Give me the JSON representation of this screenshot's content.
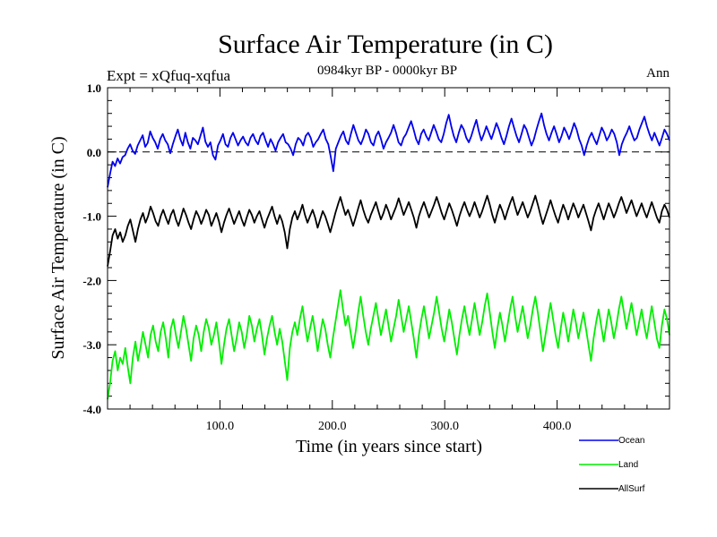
{
  "chart_data": {
    "type": "line",
    "title": "Surface Air Temperature (in C)",
    "subtitle_left": "Expt = xQfuq-xqfua",
    "subtitle_center": "0984kyr BP - 0000kyr BP",
    "subtitle_right": "Ann",
    "xlabel": "Time (in years since start)",
    "ylabel": "Surface Air Temperature (in C)",
    "xlim": [
      0,
      500
    ],
    "ylim": [
      -4.0,
      1.0
    ],
    "xticks": [
      100,
      200,
      300,
      400
    ],
    "xtick_labels": [
      "100.0",
      "200.0",
      "300.0",
      "400.0"
    ],
    "yticks": [
      1.0,
      0.0,
      -1.0,
      -2.0,
      -3.0,
      -4.0
    ],
    "ytick_labels": [
      "1.0",
      "0.0",
      "-1.0",
      "-2.0",
      "-3.0",
      "-4.0"
    ],
    "reference_line": 0.0,
    "series": [
      {
        "name": "Ocean",
        "color": "#0000ee",
        "values": [
          -0.55,
          -0.34,
          -0.15,
          -0.22,
          -0.1,
          -0.18,
          -0.08,
          -0.05,
          0.05,
          0.12,
          0.02,
          -0.03,
          0.1,
          0.18,
          0.26,
          0.08,
          0.14,
          0.32,
          0.22,
          0.15,
          0.05,
          0.2,
          0.28,
          0.18,
          0.12,
          -0.02,
          0.12,
          0.24,
          0.35,
          0.2,
          0.1,
          0.3,
          0.15,
          0.05,
          0.22,
          0.18,
          0.12,
          0.25,
          0.38,
          0.16,
          0.08,
          0.15,
          -0.05,
          -0.12,
          0.1,
          0.18,
          0.28,
          0.12,
          0.08,
          0.22,
          0.3,
          0.2,
          0.1,
          0.18,
          0.24,
          0.15,
          0.1,
          0.22,
          0.28,
          0.18,
          0.12,
          0.25,
          0.3,
          0.18,
          0.08,
          0.2,
          0.12,
          0.02,
          0.15,
          0.22,
          0.28,
          0.15,
          0.12,
          0.05,
          -0.05,
          0.12,
          0.22,
          0.18,
          0.1,
          0.25,
          0.3,
          0.22,
          0.08,
          0.15,
          0.2,
          0.28,
          0.35,
          0.2,
          0.12,
          -0.08,
          -0.3,
          0.05,
          0.15,
          0.25,
          0.32,
          0.18,
          0.12,
          0.28,
          0.42,
          0.3,
          0.18,
          0.12,
          0.22,
          0.35,
          0.28,
          0.15,
          0.1,
          0.25,
          0.32,
          0.2,
          0.05,
          0.15,
          0.22,
          0.3,
          0.42,
          0.3,
          0.15,
          0.1,
          0.22,
          0.28,
          0.38,
          0.48,
          0.35,
          0.2,
          0.12,
          0.28,
          0.35,
          0.25,
          0.18,
          0.3,
          0.42,
          0.32,
          0.2,
          0.15,
          0.28,
          0.45,
          0.58,
          0.4,
          0.25,
          0.15,
          0.3,
          0.42,
          0.35,
          0.22,
          0.15,
          0.25,
          0.38,
          0.5,
          0.32,
          0.18,
          0.28,
          0.4,
          0.3,
          0.2,
          0.32,
          0.45,
          0.35,
          0.22,
          0.12,
          0.25,
          0.4,
          0.52,
          0.38,
          0.25,
          0.15,
          0.28,
          0.42,
          0.35,
          0.22,
          0.1,
          0.2,
          0.35,
          0.48,
          0.6,
          0.42,
          0.28,
          0.18,
          0.3,
          0.4,
          0.28,
          0.15,
          0.25,
          0.38,
          0.3,
          0.2,
          0.32,
          0.45,
          0.35,
          0.2,
          0.1,
          -0.05,
          0.1,
          0.22,
          0.3,
          0.2,
          0.12,
          0.25,
          0.38,
          0.3,
          0.18,
          0.25,
          0.35,
          0.28,
          0.15,
          -0.05,
          0.12,
          0.22,
          0.3,
          0.4,
          0.28,
          0.18,
          0.22,
          0.35,
          0.45,
          0.55,
          0.4,
          0.28,
          0.18,
          0.3,
          0.2,
          0.1,
          0.22,
          0.35,
          0.28,
          0.18
        ]
      },
      {
        "name": "Land",
        "color": "#00ee00",
        "values": [
          -3.85,
          -3.6,
          -3.25,
          -3.1,
          -3.4,
          -3.2,
          -3.3,
          -3.05,
          -3.35,
          -3.6,
          -3.2,
          -2.95,
          -3.25,
          -3.05,
          -2.8,
          -3.0,
          -3.2,
          -2.85,
          -2.7,
          -2.95,
          -3.1,
          -2.8,
          -2.65,
          -2.9,
          -3.2,
          -2.75,
          -2.6,
          -2.85,
          -3.05,
          -2.8,
          -2.55,
          -2.75,
          -3.0,
          -3.25,
          -2.9,
          -2.7,
          -2.85,
          -3.1,
          -2.8,
          -2.6,
          -2.75,
          -3.0,
          -2.85,
          -2.65,
          -2.95,
          -3.3,
          -3.0,
          -2.75,
          -2.6,
          -2.85,
          -3.1,
          -2.9,
          -2.65,
          -2.8,
          -3.05,
          -2.85,
          -2.55,
          -2.7,
          -2.95,
          -2.75,
          -2.6,
          -2.85,
          -3.15,
          -2.9,
          -2.7,
          -2.55,
          -2.8,
          -3.0,
          -2.75,
          -2.95,
          -3.25,
          -3.55,
          -3.05,
          -2.8,
          -2.65,
          -2.85,
          -2.6,
          -2.4,
          -2.7,
          -2.95,
          -2.75,
          -2.55,
          -2.8,
          -3.1,
          -2.85,
          -2.6,
          -2.75,
          -3.0,
          -3.2,
          -2.9,
          -2.65,
          -2.4,
          -2.15,
          -2.45,
          -2.7,
          -2.55,
          -2.8,
          -3.05,
          -2.8,
          -2.5,
          -2.25,
          -2.55,
          -2.8,
          -3.0,
          -2.75,
          -2.55,
          -2.35,
          -2.6,
          -2.85,
          -2.65,
          -2.45,
          -2.7,
          -2.95,
          -2.75,
          -2.55,
          -2.3,
          -2.55,
          -2.8,
          -2.6,
          -2.4,
          -2.65,
          -2.9,
          -3.2,
          -2.85,
          -2.6,
          -2.4,
          -2.65,
          -2.9,
          -2.7,
          -2.5,
          -2.25,
          -2.5,
          -2.75,
          -2.95,
          -2.7,
          -2.45,
          -2.65,
          -2.9,
          -3.15,
          -2.85,
          -2.6,
          -2.4,
          -2.65,
          -2.85,
          -2.6,
          -2.35,
          -2.6,
          -2.85,
          -2.65,
          -2.4,
          -2.2,
          -2.5,
          -2.8,
          -3.05,
          -2.75,
          -2.5,
          -2.7,
          -2.95,
          -2.7,
          -2.45,
          -2.25,
          -2.55,
          -2.8,
          -2.6,
          -2.4,
          -2.65,
          -2.9,
          -2.7,
          -2.45,
          -2.25,
          -2.5,
          -2.8,
          -3.1,
          -2.85,
          -2.6,
          -2.35,
          -2.6,
          -2.85,
          -3.05,
          -2.75,
          -2.5,
          -2.7,
          -2.95,
          -2.7,
          -2.45,
          -2.65,
          -2.9,
          -2.7,
          -2.5,
          -2.75,
          -3.0,
          -3.25,
          -2.9,
          -2.65,
          -2.45,
          -2.7,
          -2.95,
          -2.7,
          -2.45,
          -2.65,
          -2.9,
          -2.7,
          -2.45,
          -2.25,
          -2.5,
          -2.75,
          -2.55,
          -2.35,
          -2.6,
          -2.85,
          -2.65,
          -2.45,
          -2.7,
          -2.9,
          -2.65,
          -2.4,
          -2.65,
          -2.9,
          -3.05,
          -2.7,
          -2.45,
          -2.6,
          -2.85
        ]
      },
      {
        "name": "AllSurf",
        "color": "#000000",
        "values": [
          -1.78,
          -1.55,
          -1.3,
          -1.2,
          -1.35,
          -1.25,
          -1.4,
          -1.3,
          -1.15,
          -1.05,
          -1.22,
          -1.4,
          -1.2,
          -1.05,
          -0.95,
          -1.1,
          -1.0,
          -0.85,
          -0.95,
          -1.08,
          -1.15,
          -1.0,
          -0.9,
          -1.02,
          -1.12,
          -0.98,
          -0.9,
          -1.05,
          -1.15,
          -1.02,
          -0.88,
          -0.98,
          -1.1,
          -1.2,
          -1.05,
          -0.92,
          -1.0,
          -1.12,
          -1.02,
          -0.9,
          -0.98,
          -1.15,
          -1.05,
          -0.95,
          -1.08,
          -1.25,
          -1.1,
          -0.98,
          -0.88,
          -1.0,
          -1.12,
          -1.02,
          -0.92,
          -1.05,
          -1.15,
          -1.02,
          -0.9,
          -0.98,
          -1.1,
          -1.0,
          -0.92,
          -1.05,
          -1.18,
          -1.05,
          -0.95,
          -0.85,
          -1.0,
          -1.12,
          -0.98,
          -1.08,
          -1.25,
          -1.5,
          -1.2,
          -1.02,
          -0.92,
          -1.05,
          -0.95,
          -0.82,
          -0.98,
          -1.1,
          -1.0,
          -0.9,
          -1.02,
          -1.18,
          -1.05,
          -0.92,
          -1.0,
          -1.12,
          -1.25,
          -1.1,
          -0.95,
          -0.82,
          -0.7,
          -0.85,
          -0.98,
          -0.9,
          -1.02,
          -1.15,
          -1.02,
          -0.88,
          -0.75,
          -0.9,
          -1.02,
          -1.1,
          -0.98,
          -0.88,
          -0.78,
          -0.92,
          -1.05,
          -0.95,
          -0.82,
          -0.92,
          -1.05,
          -0.95,
          -0.85,
          -0.72,
          -0.85,
          -0.98,
          -0.88,
          -0.78,
          -0.9,
          -1.02,
          -1.18,
          -1.0,
          -0.88,
          -0.78,
          -0.9,
          -1.02,
          -0.92,
          -0.82,
          -0.7,
          -0.82,
          -0.95,
          -1.05,
          -0.92,
          -0.8,
          -0.9,
          -1.02,
          -1.15,
          -1.0,
          -0.88,
          -0.78,
          -0.9,
          -1.0,
          -0.9,
          -0.78,
          -0.9,
          -1.02,
          -0.92,
          -0.8,
          -0.68,
          -0.82,
          -0.98,
          -1.1,
          -0.95,
          -0.82,
          -0.92,
          -1.05,
          -0.92,
          -0.8,
          -0.7,
          -0.85,
          -0.98,
          -0.88,
          -0.78,
          -0.9,
          -1.02,
          -0.92,
          -0.8,
          -0.68,
          -0.82,
          -0.98,
          -1.12,
          -1.0,
          -0.88,
          -0.75,
          -0.88,
          -1.0,
          -1.1,
          -0.95,
          -0.82,
          -0.92,
          -1.05,
          -0.92,
          -0.8,
          -0.9,
          -1.02,
          -0.92,
          -0.82,
          -0.95,
          -1.08,
          -1.22,
          -1.02,
          -0.9,
          -0.8,
          -0.92,
          -1.05,
          -0.92,
          -0.8,
          -0.9,
          -1.02,
          -0.92,
          -0.8,
          -0.7,
          -0.82,
          -0.95,
          -0.85,
          -0.75,
          -0.88,
          -1.0,
          -0.9,
          -0.8,
          -0.92,
          -1.02,
          -0.9,
          -0.78,
          -0.9,
          -1.02,
          -1.1,
          -0.92,
          -0.82,
          -0.9,
          -1.02
        ]
      }
    ],
    "legend": {
      "placement": "bottom-right"
    }
  }
}
